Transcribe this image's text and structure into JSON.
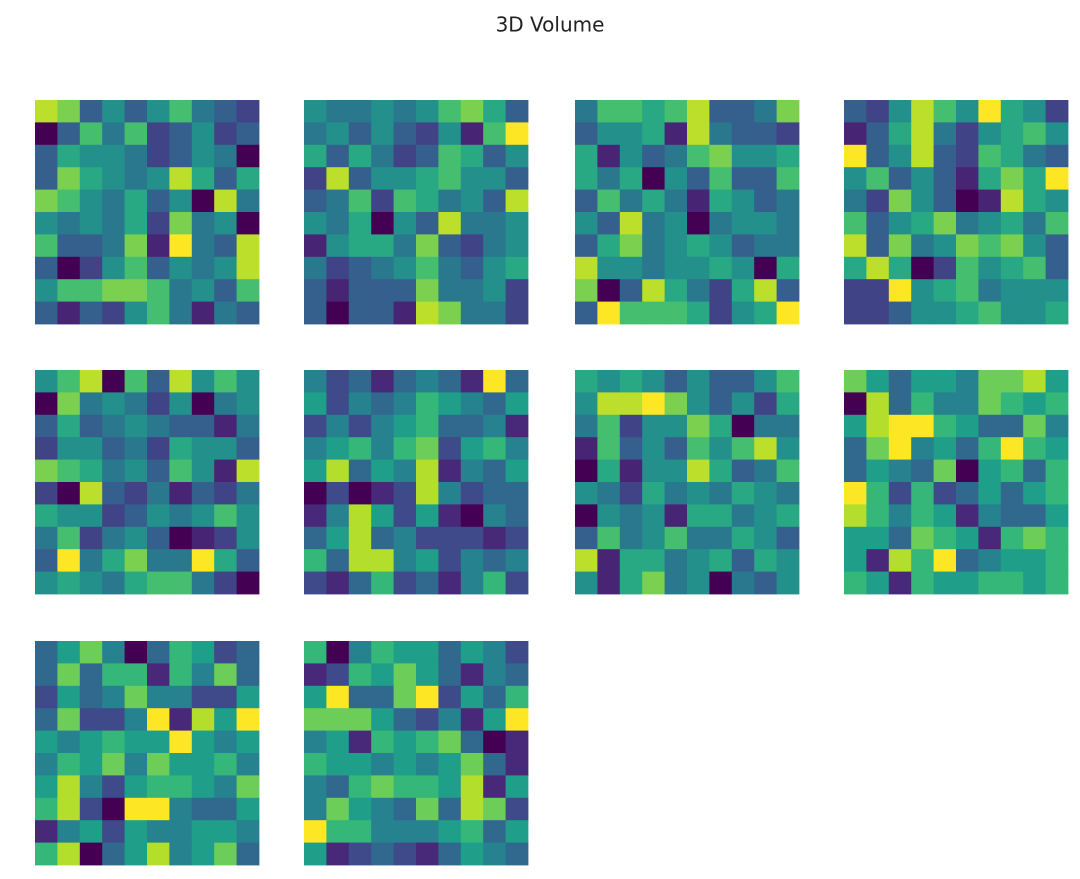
{
  "chart_data": {
    "type": "heatmap",
    "title": "3D Volume",
    "colormap": "viridis",
    "slices": [
      [
        [
          0.9,
          0.8,
          0.3,
          0.5,
          0.3,
          0.5,
          0.7,
          0.4,
          0.3,
          0.2
        ],
        [
          0.0,
          0.3,
          0.7,
          0.4,
          0.7,
          0.2,
          0.3,
          0.5,
          0.2,
          0.3
        ],
        [
          0.3,
          0.6,
          0.5,
          0.5,
          0.4,
          0.2,
          0.3,
          0.5,
          0.4,
          0.0
        ],
        [
          0.3,
          0.8,
          0.6,
          0.5,
          0.4,
          0.5,
          0.9,
          0.6,
          0.3,
          0.6
        ],
        [
          0.8,
          0.7,
          0.5,
          0.4,
          0.6,
          0.3,
          0.5,
          0.0,
          0.9,
          0.4
        ],
        [
          0.5,
          0.4,
          0.5,
          0.4,
          0.6,
          0.2,
          0.8,
          0.4,
          0.5,
          0.0
        ],
        [
          0.7,
          0.3,
          0.3,
          0.4,
          0.8,
          0.1,
          1.0,
          0.4,
          0.3,
          0.9
        ],
        [
          0.3,
          0.0,
          0.2,
          0.5,
          0.7,
          0.3,
          0.5,
          0.4,
          0.5,
          0.9
        ],
        [
          0.5,
          0.7,
          0.7,
          0.8,
          0.8,
          0.7,
          0.4,
          0.5,
          0.3,
          0.7
        ],
        [
          0.3,
          0.1,
          0.3,
          0.2,
          0.5,
          0.7,
          0.4,
          0.1,
          0.4,
          0.3
        ]
      ],
      [
        [
          0.5,
          0.4,
          0.4,
          0.5,
          0.4,
          0.5,
          0.7,
          0.8,
          0.6,
          0.3
        ],
        [
          0.4,
          0.5,
          0.3,
          0.5,
          0.3,
          0.2,
          0.5,
          0.1,
          0.7,
          1.0
        ],
        [
          0.6,
          0.3,
          0.6,
          0.4,
          0.2,
          0.3,
          0.7,
          0.6,
          0.3,
          0.5
        ],
        [
          0.2,
          0.9,
          0.3,
          0.5,
          0.5,
          0.6,
          0.7,
          0.5,
          0.5,
          0.3
        ],
        [
          0.3,
          0.4,
          0.7,
          0.2,
          0.7,
          0.6,
          0.4,
          0.5,
          0.3,
          0.9
        ],
        [
          0.5,
          0.4,
          0.6,
          0.0,
          0.5,
          0.3,
          0.9,
          0.4,
          0.4,
          0.5
        ],
        [
          0.1,
          0.5,
          0.6,
          0.6,
          0.4,
          0.8,
          0.3,
          0.2,
          0.4,
          0.5
        ],
        [
          0.4,
          0.2,
          0.3,
          0.4,
          0.5,
          0.7,
          0.4,
          0.3,
          0.5,
          0.6
        ],
        [
          0.3,
          0.1,
          0.3,
          0.3,
          0.3,
          0.8,
          0.4,
          0.4,
          0.5,
          0.2
        ],
        [
          0.3,
          0.0,
          0.3,
          0.3,
          0.1,
          0.9,
          0.8,
          0.4,
          0.4,
          0.2
        ]
      ],
      [
        [
          0.4,
          0.7,
          0.7,
          0.6,
          0.7,
          0.9,
          0.3,
          0.3,
          0.4,
          0.8
        ],
        [
          0.3,
          0.5,
          0.5,
          0.6,
          0.1,
          0.9,
          0.4,
          0.3,
          0.3,
          0.2
        ],
        [
          0.6,
          0.1,
          0.5,
          0.3,
          0.4,
          0.7,
          0.8,
          0.5,
          0.5,
          0.6
        ],
        [
          0.6,
          0.4,
          0.6,
          0.0,
          0.5,
          0.3,
          0.7,
          0.3,
          0.3,
          0.7
        ],
        [
          0.3,
          0.7,
          0.4,
          0.6,
          0.4,
          0.1,
          0.6,
          0.5,
          0.3,
          0.4
        ],
        [
          0.5,
          0.3,
          0.9,
          0.4,
          0.5,
          0.0,
          0.4,
          0.5,
          0.5,
          0.4
        ],
        [
          0.3,
          0.6,
          0.8,
          0.4,
          0.5,
          0.6,
          0.5,
          0.3,
          0.4,
          0.4
        ],
        [
          0.9,
          0.5,
          0.5,
          0.4,
          0.5,
          0.5,
          0.6,
          0.5,
          0.0,
          0.6
        ],
        [
          0.8,
          0.0,
          0.3,
          0.9,
          0.6,
          0.4,
          0.2,
          0.6,
          0.9,
          0.3
        ],
        [
          0.3,
          1.0,
          0.7,
          0.7,
          0.7,
          0.6,
          0.2,
          0.5,
          0.6,
          1.0
        ]
      ],
      [
        [
          0.3,
          0.2,
          0.5,
          0.9,
          0.7,
          0.5,
          1.0,
          0.6,
          0.5,
          0.2
        ],
        [
          0.1,
          0.3,
          0.6,
          0.9,
          0.4,
          0.2,
          0.5,
          0.6,
          0.7,
          0.5
        ],
        [
          1.0,
          0.3,
          0.5,
          0.9,
          0.3,
          0.2,
          0.7,
          0.6,
          0.4,
          0.3
        ],
        [
          0.5,
          0.7,
          0.3,
          0.5,
          0.3,
          0.1,
          0.6,
          0.8,
          0.6,
          1.0
        ],
        [
          0.4,
          0.2,
          0.8,
          0.5,
          0.3,
          0.0,
          0.1,
          0.9,
          0.6,
          0.5
        ],
        [
          0.7,
          0.3,
          0.5,
          0.6,
          0.8,
          0.4,
          0.5,
          0.6,
          0.4,
          0.7
        ],
        [
          0.9,
          0.3,
          0.8,
          0.4,
          0.5,
          0.8,
          0.7,
          0.8,
          0.5,
          0.3
        ],
        [
          0.6,
          0.9,
          0.6,
          0.0,
          0.2,
          0.7,
          0.5,
          0.6,
          0.7,
          0.3
        ],
        [
          0.2,
          0.2,
          1.0,
          0.5,
          0.6,
          0.7,
          0.4,
          0.5,
          0.5,
          0.5
        ],
        [
          0.2,
          0.2,
          0.3,
          0.5,
          0.5,
          0.6,
          0.7,
          0.5,
          0.5,
          0.6
        ]
      ],
      [
        [
          0.5,
          0.7,
          0.9,
          0.0,
          0.7,
          0.3,
          0.9,
          0.5,
          0.7,
          0.5
        ],
        [
          0.0,
          0.8,
          0.4,
          0.5,
          0.4,
          0.2,
          0.5,
          0.0,
          0.4,
          0.5
        ],
        [
          0.3,
          0.6,
          0.3,
          0.4,
          0.5,
          0.4,
          0.3,
          0.3,
          0.1,
          0.4
        ],
        [
          0.2,
          0.5,
          0.5,
          0.3,
          0.4,
          0.2,
          0.6,
          0.5,
          0.5,
          0.3
        ],
        [
          0.8,
          0.7,
          0.6,
          0.4,
          0.5,
          0.3,
          0.7,
          0.5,
          0.1,
          0.9
        ],
        [
          0.2,
          0.0,
          0.9,
          0.3,
          0.2,
          0.4,
          0.1,
          0.3,
          0.2,
          0.4
        ],
        [
          0.6,
          0.5,
          0.5,
          0.2,
          0.3,
          0.5,
          0.4,
          0.5,
          0.7,
          0.5
        ],
        [
          0.4,
          0.7,
          0.2,
          0.4,
          0.5,
          0.3,
          0.0,
          0.1,
          0.2,
          0.5
        ],
        [
          0.3,
          1.0,
          0.4,
          0.6,
          0.8,
          0.4,
          0.4,
          1.0,
          0.6,
          0.3
        ],
        [
          0.5,
          0.6,
          0.5,
          0.4,
          0.6,
          0.7,
          0.7,
          0.4,
          0.2,
          0.0
        ]
      ],
      [
        [
          0.5,
          0.3,
          0.4,
          0.2,
          0.4,
          0.5,
          0.4,
          0.2,
          1.0,
          0.4
        ],
        [
          0.6,
          0.3,
          0.5,
          0.4,
          0.5,
          0.7,
          0.6,
          0.5,
          0.4,
          0.6
        ],
        [
          0.3,
          0.5,
          0.3,
          0.5,
          0.6,
          0.7,
          0.4,
          0.4,
          0.5,
          0.2
        ],
        [
          0.5,
          0.6,
          0.7,
          0.5,
          0.7,
          0.8,
          0.3,
          0.6,
          0.7,
          0.5
        ],
        [
          0.6,
          0.9,
          0.4,
          0.6,
          0.5,
          0.9,
          0.2,
          0.5,
          0.4,
          0.6
        ],
        [
          0.1,
          0.3,
          0.1,
          0.2,
          0.3,
          0.9,
          0.5,
          0.3,
          0.4,
          0.4
        ],
        [
          0.2,
          0.5,
          0.9,
          0.6,
          0.3,
          0.6,
          0.2,
          0.1,
          0.5,
          0.4
        ],
        [
          0.4,
          0.6,
          0.9,
          0.4,
          0.5,
          0.3,
          0.3,
          0.3,
          0.2,
          0.3
        ],
        [
          0.7,
          0.4,
          0.9,
          0.9,
          0.5,
          0.6,
          0.3,
          0.5,
          0.4,
          0.5
        ],
        [
          0.3,
          0.2,
          0.4,
          0.7,
          0.3,
          0.4,
          0.2,
          0.5,
          0.7,
          0.3
        ]
      ],
      [
        [
          0.6,
          0.5,
          0.6,
          0.5,
          0.3,
          0.5,
          0.3,
          0.3,
          0.5,
          0.7
        ],
        [
          0.5,
          0.9,
          0.9,
          1.0,
          0.8,
          0.5,
          0.3,
          0.5,
          0.2,
          0.6
        ],
        [
          0.4,
          0.7,
          0.2,
          0.5,
          0.5,
          0.8,
          0.6,
          0.0,
          0.4,
          0.4
        ],
        [
          0.1,
          0.7,
          0.3,
          0.5,
          0.3,
          0.7,
          0.5,
          0.7,
          0.9,
          0.5
        ],
        [
          0.0,
          0.6,
          0.1,
          0.5,
          0.5,
          0.9,
          0.6,
          0.3,
          0.4,
          0.7
        ],
        [
          0.5,
          0.4,
          0.2,
          0.6,
          0.4,
          0.5,
          0.4,
          0.6,
          0.5,
          0.4
        ],
        [
          0.0,
          0.5,
          0.4,
          0.5,
          0.1,
          0.6,
          0.6,
          0.4,
          0.5,
          0.6
        ],
        [
          0.3,
          0.7,
          0.4,
          0.5,
          0.7,
          0.4,
          0.4,
          0.6,
          0.5,
          0.3
        ],
        [
          0.9,
          0.1,
          0.6,
          0.6,
          0.4,
          0.5,
          0.6,
          0.3,
          0.6,
          0.5
        ],
        [
          0.5,
          0.1,
          0.6,
          0.8,
          0.4,
          0.5,
          0.0,
          0.4,
          0.3,
          0.5
        ]
      ],
      [
        [
          0.7,
          0.5,
          0.3,
          0.5,
          0.5,
          0.4,
          0.7,
          0.7,
          0.8,
          0.5
        ],
        [
          0.0,
          0.8,
          0.3,
          0.6,
          0.4,
          0.4,
          0.7,
          0.6,
          0.5,
          0.6
        ],
        [
          0.5,
          0.8,
          0.9,
          0.9,
          0.6,
          0.5,
          0.3,
          0.3,
          0.7,
          0.4
        ],
        [
          0.3,
          0.7,
          0.9,
          0.4,
          0.5,
          0.3,
          0.6,
          0.9,
          0.6,
          0.5
        ],
        [
          0.3,
          0.5,
          0.4,
          0.3,
          0.7,
          0.0,
          0.5,
          0.6,
          0.3,
          0.6
        ],
        [
          0.9,
          0.6,
          0.2,
          0.6,
          0.2,
          0.3,
          0.5,
          0.3,
          0.5,
          0.6
        ],
        [
          0.8,
          0.6,
          0.4,
          0.6,
          0.5,
          0.1,
          0.4,
          0.3,
          0.3,
          0.5
        ],
        [
          0.5,
          0.5,
          0.3,
          0.7,
          0.6,
          0.5,
          0.1,
          0.6,
          0.7,
          0.6
        ],
        [
          0.5,
          0.1,
          0.8,
          0.6,
          0.9,
          0.3,
          0.4,
          0.5,
          0.5,
          0.6
        ],
        [
          0.6,
          0.5,
          0.1,
          0.6,
          0.5,
          0.5,
          0.6,
          0.6,
          0.5,
          0.6
        ]
      ],
      [
        [
          0.3,
          0.5,
          0.7,
          0.4,
          0.0,
          0.3,
          0.6,
          0.5,
          0.2,
          0.3
        ],
        [
          0.3,
          0.7,
          0.3,
          0.6,
          0.6,
          0.1,
          0.6,
          0.4,
          0.7,
          0.3
        ],
        [
          0.2,
          0.5,
          0.3,
          0.4,
          0.7,
          0.4,
          0.4,
          0.2,
          0.2,
          0.5
        ],
        [
          0.3,
          0.7,
          0.2,
          0.2,
          0.4,
          0.9,
          0.1,
          0.8,
          0.5,
          0.9
        ],
        [
          0.5,
          0.4,
          0.5,
          0.6,
          0.5,
          0.5,
          0.9,
          0.5,
          0.4,
          0.5
        ],
        [
          0.4,
          0.6,
          0.5,
          0.7,
          0.4,
          0.7,
          0.5,
          0.5,
          0.6,
          0.4
        ],
        [
          0.5,
          0.8,
          0.4,
          0.2,
          0.5,
          0.6,
          0.6,
          0.5,
          0.4,
          0.7
        ],
        [
          0.6,
          0.8,
          0.2,
          0.0,
          0.9,
          0.9,
          0.4,
          0.3,
          0.3,
          0.5
        ],
        [
          0.1,
          0.4,
          0.5,
          0.2,
          0.5,
          0.4,
          0.4,
          0.5,
          0.5,
          0.4
        ],
        [
          0.6,
          0.8,
          0.0,
          0.3,
          0.5,
          0.8,
          0.4,
          0.5,
          0.7,
          0.3
        ]
      ],
      [
        [
          0.6,
          0.0,
          0.4,
          0.6,
          0.5,
          0.5,
          0.3,
          0.5,
          0.4,
          0.2
        ],
        [
          0.1,
          0.2,
          0.6,
          0.5,
          0.7,
          0.5,
          0.3,
          0.1,
          0.4,
          0.3
        ],
        [
          0.5,
          0.9,
          0.3,
          0.3,
          0.7,
          0.9,
          0.2,
          0.5,
          0.3,
          0.6
        ],
        [
          0.7,
          0.7,
          0.7,
          0.5,
          0.3,
          0.2,
          0.4,
          0.1,
          0.5,
          0.9
        ],
        [
          0.4,
          0.5,
          0.1,
          0.6,
          0.5,
          0.6,
          0.7,
          0.3,
          0.0,
          0.1
        ],
        [
          0.6,
          0.5,
          0.5,
          0.4,
          0.5,
          0.4,
          0.5,
          0.7,
          0.3,
          0.1
        ],
        [
          0.4,
          0.3,
          0.6,
          0.7,
          0.6,
          0.6,
          0.5,
          0.8,
          0.1,
          0.5
        ],
        [
          0.4,
          0.7,
          0.5,
          0.4,
          0.3,
          0.7,
          0.3,
          0.8,
          0.7,
          0.2
        ],
        [
          0.9,
          0.6,
          0.6,
          0.4,
          0.4,
          0.4,
          0.5,
          0.6,
          0.3,
          0.5
        ],
        [
          0.5,
          0.1,
          0.2,
          0.3,
          0.2,
          0.1,
          0.3,
          0.5,
          0.4,
          0.3
        ]
      ]
    ]
  }
}
